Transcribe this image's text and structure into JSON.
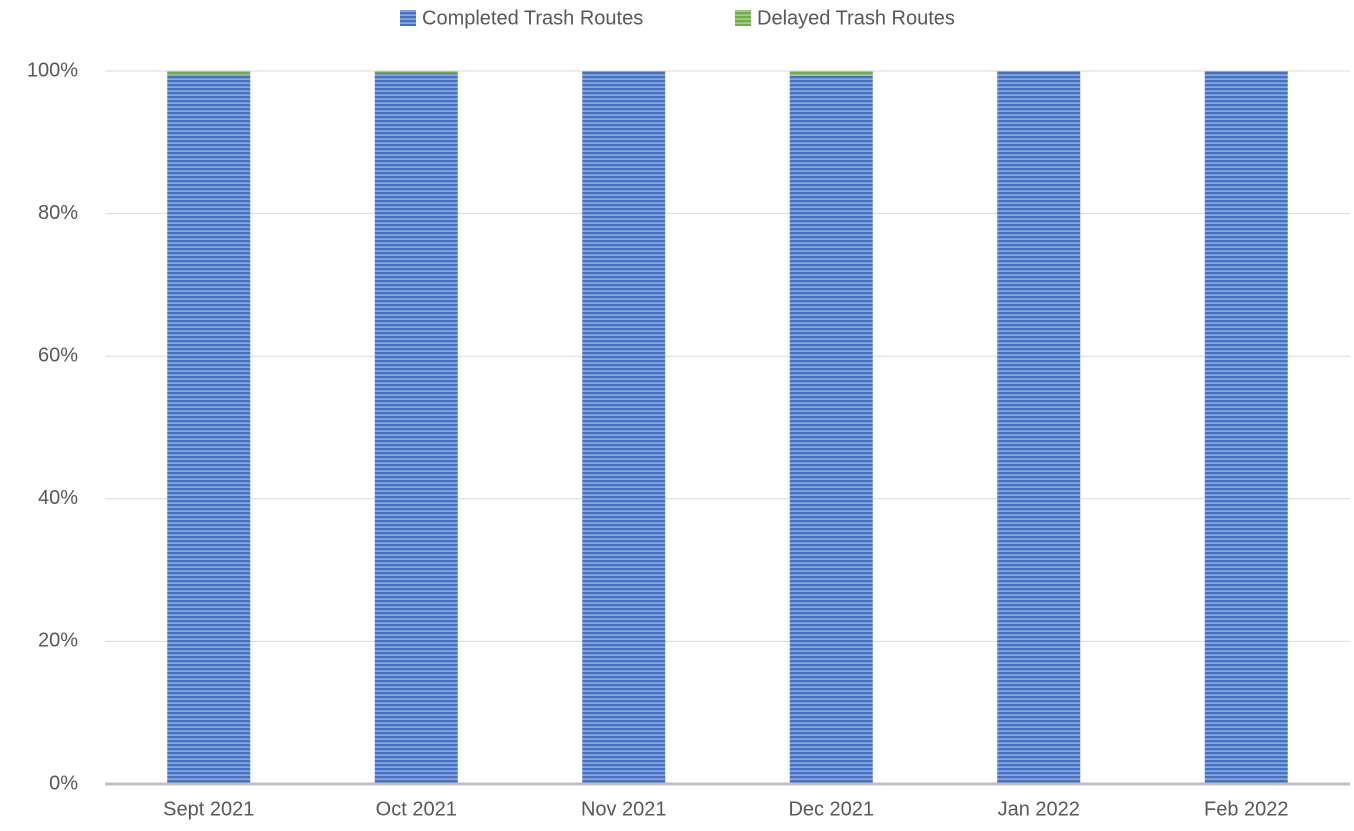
{
  "chart_data": {
    "type": "stacked_bar",
    "categories": [
      "Sept 2021",
      "Oct 2021",
      "Nov 2021",
      "Dec 2021",
      "Jan 2022",
      "Feb 2022"
    ],
    "series": [
      {
        "name": "Completed Trash Routes",
        "color": "#4472c4",
        "values": [
          99.5,
          99.7,
          100,
          99.3,
          100,
          100
        ]
      },
      {
        "name": "Delayed Trash Routes",
        "color": "#70ad47",
        "values": [
          0.5,
          0.3,
          0,
          0.7,
          0,
          0
        ]
      }
    ],
    "ylim": [
      0,
      100
    ],
    "yticks": [
      {
        "value": 0,
        "label": "0%"
      },
      {
        "value": 20,
        "label": "20%"
      },
      {
        "value": 40,
        "label": "40%"
      },
      {
        "value": 60,
        "label": "60%"
      },
      {
        "value": 80,
        "label": "80%"
      },
      {
        "value": 100,
        "label": "100%"
      }
    ],
    "grid": true,
    "legend": "top"
  }
}
